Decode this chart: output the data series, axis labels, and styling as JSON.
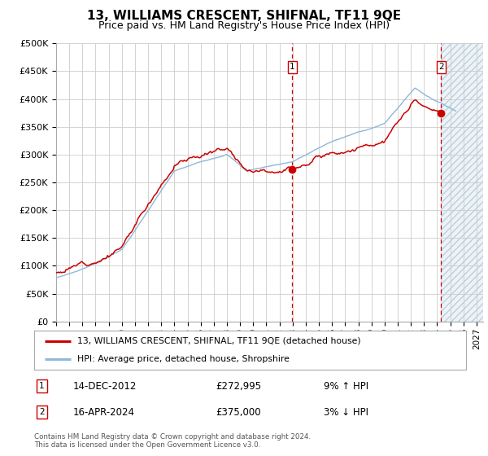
{
  "title": "13, WILLIAMS CRESCENT, SHIFNAL, TF11 9QE",
  "subtitle": "Price paid vs. HM Land Registry's House Price Index (HPI)",
  "ylim": [
    0,
    500000
  ],
  "yticks": [
    0,
    50000,
    100000,
    150000,
    200000,
    250000,
    300000,
    350000,
    400000,
    450000,
    500000
  ],
  "ytick_labels": [
    "£0",
    "£50K",
    "£100K",
    "£150K",
    "£200K",
    "£250K",
    "£300K",
    "£350K",
    "£400K",
    "£450K",
    "£500K"
  ],
  "sale1_date": 2012.96,
  "sale1_price": 272995,
  "sale1_label": "1",
  "sale1_text": "14-DEC-2012",
  "sale1_amount": "£272,995",
  "sale1_hpi": "9% ↑ HPI",
  "sale2_date": 2024.29,
  "sale2_price": 375000,
  "sale2_label": "2",
  "sale2_text": "16-APR-2024",
  "sale2_amount": "£375,000",
  "sale2_hpi": "3% ↓ HPI",
  "background_color": "#ffffff",
  "plot_bg_color": "#ffffff",
  "grid_color": "#cccccc",
  "hpi_line_color": "#90b8d8",
  "price_line_color": "#cc0000",
  "vline_color": "#cc0000",
  "future_fill_color": "#dde8f0",
  "legend_label1": "13, WILLIAMS CRESCENT, SHIFNAL, TF11 9QE (detached house)",
  "legend_label2": "HPI: Average price, detached house, Shropshire",
  "footer": "Contains HM Land Registry data © Crown copyright and database right 2024.\nThis data is licensed under the Open Government Licence v3.0.",
  "title_fontsize": 11,
  "subtitle_fontsize": 9,
  "tick_fontsize": 8,
  "xstart": 1995.0,
  "xend": 2027.5
}
